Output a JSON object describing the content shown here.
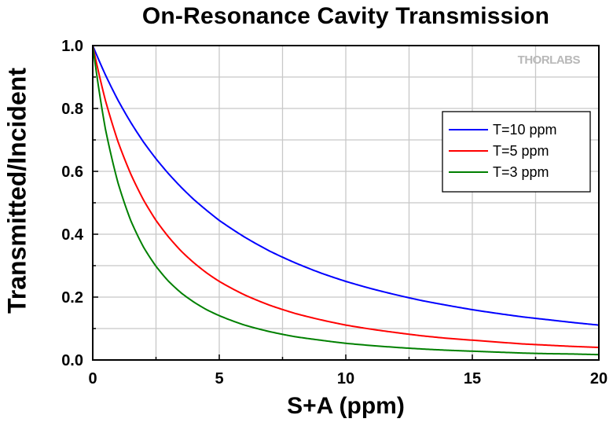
{
  "chart_data": {
    "type": "line",
    "title": "On-Resonance Cavity Transmission",
    "xlabel": "S+A (ppm)",
    "ylabel": "Transmitted/Incident",
    "xlim": [
      0,
      20
    ],
    "ylim": [
      0,
      1.0
    ],
    "x_ticks": [
      "0",
      "5",
      "10",
      "15",
      "20"
    ],
    "y_ticks": [
      "0.0",
      "0.2",
      "0.4",
      "0.6",
      "0.8",
      "1.0"
    ],
    "grid": true,
    "legend_position": "upper-right",
    "watermark": "THORLABS",
    "x": [
      0,
      0.5,
      1,
      1.5,
      2,
      2.5,
      3,
      3.5,
      4,
      4.5,
      5,
      6,
      7,
      8,
      9,
      10,
      11,
      12,
      13,
      14,
      15,
      16,
      17,
      18,
      19,
      20
    ],
    "series": [
      {
        "name": "T=10 ppm",
        "color": "#0000ff",
        "values": [
          1.0,
          0.907,
          0.826,
          0.756,
          0.694,
          0.64,
          0.592,
          0.549,
          0.51,
          0.476,
          0.444,
          0.391,
          0.346,
          0.309,
          0.277,
          0.25,
          0.227,
          0.207,
          0.189,
          0.174,
          0.16,
          0.148,
          0.137,
          0.128,
          0.119,
          0.111
        ]
      },
      {
        "name": "T=5 ppm",
        "color": "#ff0000",
        "values": [
          1.0,
          0.826,
          0.694,
          0.592,
          0.51,
          0.444,
          0.391,
          0.346,
          0.309,
          0.277,
          0.25,
          0.207,
          0.174,
          0.148,
          0.128,
          0.111,
          0.098,
          0.087,
          0.077,
          0.069,
          0.063,
          0.057,
          0.051,
          0.047,
          0.043,
          0.04
        ]
      },
      {
        "name": "T=3 ppm",
        "color": "#008000",
        "values": [
          1.0,
          0.735,
          0.563,
          0.444,
          0.36,
          0.298,
          0.25,
          0.213,
          0.184,
          0.16,
          0.141,
          0.111,
          0.09,
          0.074,
          0.063,
          0.053,
          0.046,
          0.04,
          0.035,
          0.031,
          0.028,
          0.025,
          0.022,
          0.02,
          0.019,
          0.017
        ]
      }
    ]
  }
}
